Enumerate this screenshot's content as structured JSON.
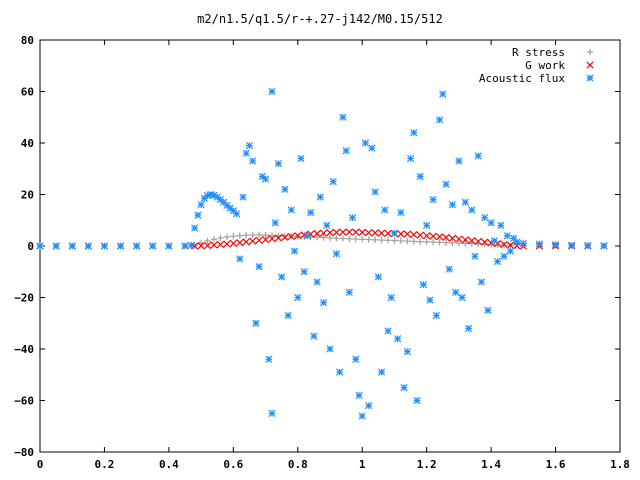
{
  "chart_data": {
    "type": "scatter",
    "title": "m2/n1.5/q1.5/r-+.27-j142/M0.15/512",
    "xlabel": "",
    "ylabel": "",
    "xlim": [
      0,
      1.8
    ],
    "ylim": [
      -80,
      80
    ],
    "x_ticks": [
      "0",
      "0.2",
      "0.4",
      "0.6",
      "0.8",
      "1",
      "1.2",
      "1.4",
      "1.6",
      "1.8"
    ],
    "y_ticks": [
      "80",
      "60",
      "40",
      "20",
      "0",
      "−20",
      "−40",
      "−60",
      "−80"
    ],
    "x_tick_values": [
      0,
      0.2,
      0.4,
      0.6,
      0.8,
      1.0,
      1.2,
      1.4,
      1.6,
      1.8
    ],
    "y_tick_values": [
      80,
      60,
      40,
      20,
      0,
      -20,
      -40,
      -60,
      -80
    ],
    "grid": false,
    "legend_position": "top-right",
    "series": [
      {
        "name": "R stress",
        "marker": "plus",
        "color": "#a0a0a0",
        "points": [
          [
            0.0,
            0.0
          ],
          [
            0.05,
            0.0
          ],
          [
            0.1,
            0.0
          ],
          [
            0.15,
            0.0
          ],
          [
            0.2,
            0.0
          ],
          [
            0.25,
            0.0
          ],
          [
            0.3,
            0.0
          ],
          [
            0.35,
            0.0
          ],
          [
            0.4,
            0.0
          ],
          [
            0.45,
            0.0
          ],
          [
            0.48,
            0.3
          ],
          [
            0.5,
            1.2
          ],
          [
            0.52,
            2.0
          ],
          [
            0.54,
            2.6
          ],
          [
            0.56,
            3.1
          ],
          [
            0.58,
            3.5
          ],
          [
            0.6,
            3.8
          ],
          [
            0.62,
            4.0
          ],
          [
            0.64,
            4.2
          ],
          [
            0.66,
            4.3
          ],
          [
            0.68,
            4.3
          ],
          [
            0.7,
            4.2
          ],
          [
            0.72,
            4.1
          ],
          [
            0.74,
            4.0
          ],
          [
            0.76,
            3.9
          ],
          [
            0.78,
            3.8
          ],
          [
            0.8,
            3.7
          ],
          [
            0.82,
            3.6
          ],
          [
            0.84,
            3.5
          ],
          [
            0.86,
            3.4
          ],
          [
            0.88,
            3.3
          ],
          [
            0.9,
            3.1
          ],
          [
            0.92,
            3.0
          ],
          [
            0.94,
            2.9
          ],
          [
            0.96,
            2.8
          ],
          [
            0.98,
            2.7
          ],
          [
            1.0,
            2.6
          ],
          [
            1.02,
            2.5
          ],
          [
            1.04,
            2.4
          ],
          [
            1.06,
            2.3
          ],
          [
            1.08,
            2.2
          ],
          [
            1.1,
            2.1
          ],
          [
            1.12,
            2.0
          ],
          [
            1.14,
            1.9
          ],
          [
            1.16,
            1.8
          ],
          [
            1.18,
            1.7
          ],
          [
            1.2,
            1.6
          ],
          [
            1.22,
            1.5
          ],
          [
            1.24,
            1.4
          ],
          [
            1.26,
            1.3
          ],
          [
            1.28,
            1.2
          ],
          [
            1.3,
            1.1
          ],
          [
            1.32,
            1.0
          ],
          [
            1.34,
            0.9
          ],
          [
            1.36,
            0.8
          ],
          [
            1.38,
            0.7
          ],
          [
            1.4,
            0.6
          ],
          [
            1.42,
            0.5
          ],
          [
            1.44,
            0.4
          ],
          [
            1.46,
            0.3
          ],
          [
            1.5,
            0.2
          ],
          [
            1.55,
            0.1
          ],
          [
            1.6,
            0.1
          ],
          [
            1.65,
            0.0
          ],
          [
            1.7,
            0.0
          ],
          [
            1.75,
            0.0
          ]
        ]
      },
      {
        "name": "G work",
        "marker": "cross",
        "color": "#ff0000",
        "points": [
          [
            0.0,
            0.0
          ],
          [
            0.05,
            0.0
          ],
          [
            0.1,
            0.0
          ],
          [
            0.15,
            0.0
          ],
          [
            0.2,
            0.0
          ],
          [
            0.25,
            0.0
          ],
          [
            0.3,
            0.0
          ],
          [
            0.35,
            0.0
          ],
          [
            0.4,
            0.0
          ],
          [
            0.45,
            0.0
          ],
          [
            0.48,
            0.0
          ],
          [
            0.5,
            0.1
          ],
          [
            0.52,
            0.2
          ],
          [
            0.54,
            0.4
          ],
          [
            0.56,
            0.6
          ],
          [
            0.58,
            0.8
          ],
          [
            0.6,
            1.0
          ],
          [
            0.62,
            1.3
          ],
          [
            0.64,
            1.6
          ],
          [
            0.66,
            1.9
          ],
          [
            0.68,
            2.2
          ],
          [
            0.7,
            2.5
          ],
          [
            0.72,
            2.8
          ],
          [
            0.74,
            3.1
          ],
          [
            0.76,
            3.4
          ],
          [
            0.78,
            3.7
          ],
          [
            0.8,
            4.0
          ],
          [
            0.82,
            4.3
          ],
          [
            0.84,
            4.6
          ],
          [
            0.86,
            4.8
          ],
          [
            0.88,
            5.0
          ],
          [
            0.9,
            5.2
          ],
          [
            0.92,
            5.3
          ],
          [
            0.94,
            5.4
          ],
          [
            0.96,
            5.4
          ],
          [
            0.98,
            5.4
          ],
          [
            1.0,
            5.3
          ],
          [
            1.02,
            5.2
          ],
          [
            1.04,
            5.1
          ],
          [
            1.06,
            5.0
          ],
          [
            1.08,
            4.9
          ],
          [
            1.1,
            4.8
          ],
          [
            1.12,
            4.7
          ],
          [
            1.14,
            4.6
          ],
          [
            1.16,
            4.4
          ],
          [
            1.18,
            4.2
          ],
          [
            1.2,
            4.0
          ],
          [
            1.22,
            3.8
          ],
          [
            1.24,
            3.6
          ],
          [
            1.26,
            3.3
          ],
          [
            1.28,
            3.0
          ],
          [
            1.3,
            2.7
          ],
          [
            1.32,
            2.4
          ],
          [
            1.34,
            2.1
          ],
          [
            1.36,
            1.8
          ],
          [
            1.38,
            1.5
          ],
          [
            1.4,
            1.2
          ],
          [
            1.42,
            0.9
          ],
          [
            1.44,
            0.6
          ],
          [
            1.46,
            0.3
          ],
          [
            1.48,
            0.1
          ],
          [
            1.5,
            0.0
          ],
          [
            1.55,
            0.0
          ],
          [
            1.6,
            0.0
          ],
          [
            1.65,
            0.0
          ],
          [
            1.7,
            0.0
          ],
          [
            1.75,
            0.0
          ]
        ]
      },
      {
        "name": "Acoustic flux",
        "marker": "star",
        "color": "#1e90ff",
        "points": [
          [
            0.0,
            0.0
          ],
          [
            0.05,
            0.0
          ],
          [
            0.1,
            0.0
          ],
          [
            0.15,
            0.0
          ],
          [
            0.2,
            0.0
          ],
          [
            0.25,
            0.0
          ],
          [
            0.3,
            0.0
          ],
          [
            0.35,
            0.0
          ],
          [
            0.4,
            0.0
          ],
          [
            0.45,
            0.0
          ],
          [
            0.47,
            0.3
          ],
          [
            0.48,
            7.0
          ],
          [
            0.49,
            12.0
          ],
          [
            0.5,
            16.0
          ],
          [
            0.51,
            18.5
          ],
          [
            0.52,
            19.6
          ],
          [
            0.53,
            20.0
          ],
          [
            0.54,
            19.7
          ],
          [
            0.55,
            19.0
          ],
          [
            0.56,
            18.0
          ],
          [
            0.57,
            17.0
          ],
          [
            0.58,
            15.8
          ],
          [
            0.59,
            14.7
          ],
          [
            0.6,
            13.7
          ],
          [
            0.61,
            12.5
          ],
          [
            0.62,
            -5.0
          ],
          [
            0.63,
            19.0
          ],
          [
            0.64,
            36.0
          ],
          [
            0.65,
            39.0
          ],
          [
            0.66,
            33.0
          ],
          [
            0.67,
            -30.0
          ],
          [
            0.68,
            -8.0
          ],
          [
            0.69,
            27.0
          ],
          [
            0.7,
            26.0
          ],
          [
            0.71,
            -44.0
          ],
          [
            0.72,
            60.0
          ],
          [
            0.72,
            -65.0
          ],
          [
            0.73,
            9.0
          ],
          [
            0.74,
            32.0
          ],
          [
            0.75,
            -12.0
          ],
          [
            0.76,
            22.0
          ],
          [
            0.77,
            -27.0
          ],
          [
            0.78,
            14.0
          ],
          [
            0.79,
            -2.0
          ],
          [
            0.8,
            -20.0
          ],
          [
            0.81,
            34.0
          ],
          [
            0.82,
            -10.0
          ],
          [
            0.83,
            4.0
          ],
          [
            0.84,
            13.0
          ],
          [
            0.85,
            -35.0
          ],
          [
            0.86,
            -14.0
          ],
          [
            0.87,
            19.0
          ],
          [
            0.88,
            -22.0
          ],
          [
            0.89,
            8.0
          ],
          [
            0.9,
            -40.0
          ],
          [
            0.91,
            25.0
          ],
          [
            0.92,
            -3.0
          ],
          [
            0.93,
            -49.0
          ],
          [
            0.94,
            50.0
          ],
          [
            0.95,
            37.0
          ],
          [
            0.96,
            -18.0
          ],
          [
            0.97,
            11.0
          ],
          [
            0.98,
            -44.0
          ],
          [
            0.99,
            -58.0
          ],
          [
            1.0,
            -66.0
          ],
          [
            1.01,
            40.0
          ],
          [
            1.02,
            -62.0
          ],
          [
            1.03,
            38.0
          ],
          [
            1.04,
            21.0
          ],
          [
            1.05,
            -12.0
          ],
          [
            1.06,
            -49.0
          ],
          [
            1.07,
            14.0
          ],
          [
            1.08,
            -33.0
          ],
          [
            1.09,
            -20.0
          ],
          [
            1.1,
            5.0
          ],
          [
            1.11,
            -36.0
          ],
          [
            1.12,
            13.0
          ],
          [
            1.13,
            -55.0
          ],
          [
            1.14,
            -41.0
          ],
          [
            1.15,
            34.0
          ],
          [
            1.16,
            44.0
          ],
          [
            1.17,
            -60.0
          ],
          [
            1.18,
            27.0
          ],
          [
            1.19,
            -15.0
          ],
          [
            1.2,
            8.0
          ],
          [
            1.21,
            -21.0
          ],
          [
            1.22,
            18.0
          ],
          [
            1.23,
            -27.0
          ],
          [
            1.24,
            49.0
          ],
          [
            1.25,
            59.0
          ],
          [
            1.26,
            24.0
          ],
          [
            1.27,
            -9.0
          ],
          [
            1.28,
            16.0
          ],
          [
            1.29,
            -18.0
          ],
          [
            1.3,
            33.0
          ],
          [
            1.31,
            -20.0
          ],
          [
            1.32,
            17.0
          ],
          [
            1.33,
            -32.0
          ],
          [
            1.34,
            14.0
          ],
          [
            1.35,
            -4.0
          ],
          [
            1.36,
            35.0
          ],
          [
            1.37,
            -14.0
          ],
          [
            1.38,
            11.0
          ],
          [
            1.39,
            -25.0
          ],
          [
            1.4,
            9.0
          ],
          [
            1.41,
            2.0
          ],
          [
            1.42,
            -6.0
          ],
          [
            1.43,
            8.0
          ],
          [
            1.44,
            -4.0
          ],
          [
            1.45,
            4.0
          ],
          [
            1.46,
            -2.0
          ],
          [
            1.47,
            3.0
          ],
          [
            1.48,
            1.5
          ],
          [
            1.5,
            1.0
          ],
          [
            1.55,
            0.8
          ],
          [
            1.6,
            0.5
          ],
          [
            1.65,
            0.3
          ],
          [
            1.7,
            0.2
          ],
          [
            1.75,
            0.1
          ]
        ]
      }
    ]
  }
}
